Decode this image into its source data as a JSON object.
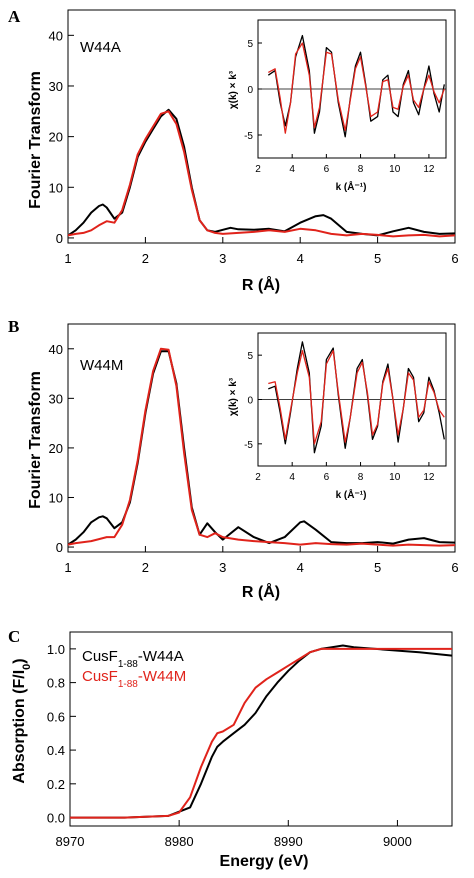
{
  "figure": {
    "panels": [
      {
        "letter": "A",
        "sample": "W44A",
        "xlabel": "R (Å)",
        "ylabel": "Fourier Transform",
        "inset": {
          "xlabel": "k (Å⁻¹)",
          "ylabel": "χ(k) × k³"
        }
      },
      {
        "letter": "B",
        "sample": "W44M",
        "xlabel": "R (Å)",
        "ylabel": "Fourier Transform",
        "inset": {
          "xlabel": "k (Å⁻¹)",
          "ylabel": "χ(k) × k³"
        }
      },
      {
        "letter": "C",
        "xlabel": "Energy (eV)",
        "ylabel": "Absorption (F/I",
        "ylabel_sub": "0",
        "ylabel_close": ")",
        "legend": [
          {
            "prefix": "CusF",
            "sub": "1-88",
            "suffix": "-W44A",
            "color": "#000000"
          },
          {
            "prefix": "CusF",
            "sub": "1-88",
            "suffix": "-W44M",
            "color": "#e0231b"
          }
        ]
      }
    ]
  },
  "chart_data": [
    {
      "type": "line",
      "panel": "A",
      "xlabel": "R (Å)",
      "ylabel": "Fourier Transform",
      "xlim": [
        1,
        6
      ],
      "ylim": [
        -1,
        45
      ],
      "xticks": [
        1,
        2,
        3,
        4,
        5,
        6
      ],
      "yticks": [
        0,
        10,
        20,
        30,
        40
      ],
      "grid": false,
      "series": [
        {
          "color": "#000000",
          "x": [
            1.0,
            1.1,
            1.2,
            1.3,
            1.4,
            1.45,
            1.5,
            1.6,
            1.7,
            1.8,
            1.9,
            2.0,
            2.1,
            2.2,
            2.3,
            2.4,
            2.5,
            2.6,
            2.7,
            2.8,
            2.9,
            3.0,
            3.1,
            3.2,
            3.4,
            3.6,
            3.8,
            4.0,
            4.2,
            4.3,
            4.4,
            4.6,
            4.8,
            5.0,
            5.2,
            5.4,
            5.6,
            5.8,
            6.0
          ],
          "y": [
            0.5,
            1.5,
            3.0,
            5.0,
            6.3,
            6.6,
            6.0,
            3.8,
            5.0,
            10.0,
            16.0,
            19.0,
            21.5,
            24.0,
            25.3,
            23.5,
            18.0,
            10.0,
            3.5,
            1.5,
            1.2,
            1.6,
            2.0,
            1.7,
            1.6,
            1.8,
            1.3,
            3.0,
            4.3,
            4.5,
            3.8,
            1.2,
            0.8,
            0.5,
            1.3,
            2.0,
            1.2,
            0.8,
            0.9
          ]
        },
        {
          "color": "#e0231b",
          "x": [
            1.0,
            1.1,
            1.2,
            1.3,
            1.4,
            1.5,
            1.6,
            1.7,
            1.8,
            1.9,
            2.0,
            2.1,
            2.2,
            2.3,
            2.4,
            2.5,
            2.6,
            2.7,
            2.8,
            2.9,
            3.0,
            3.2,
            3.4,
            3.6,
            3.8,
            4.0,
            4.2,
            4.4,
            4.6,
            4.8,
            5.0,
            5.2,
            5.4,
            5.6,
            5.8,
            6.0
          ],
          "y": [
            0.5,
            0.8,
            1.0,
            1.5,
            2.5,
            3.3,
            3.0,
            5.5,
            10.5,
            16.5,
            19.5,
            22.0,
            24.5,
            25.0,
            22.5,
            17.0,
            9.5,
            3.5,
            1.5,
            1.0,
            0.8,
            1.0,
            1.2,
            1.5,
            1.2,
            1.8,
            1.5,
            0.8,
            0.5,
            0.8,
            0.6,
            0.3,
            0.5,
            0.6,
            0.3,
            0.5
          ]
        }
      ]
    },
    {
      "type": "line",
      "panel": "A-inset",
      "xlabel": "k (Å⁻¹)",
      "ylabel": "χ(k) × k³",
      "xlim": [
        2,
        13
      ],
      "ylim": [
        -7.5,
        7.5
      ],
      "xticks": [
        2,
        4,
        6,
        8,
        10,
        12
      ],
      "yticks": [
        -5,
        0,
        5
      ],
      "series": [
        {
          "color": "#000000",
          "x": [
            2.6,
            3.0,
            3.3,
            3.6,
            3.9,
            4.2,
            4.6,
            5.0,
            5.3,
            5.6,
            6.0,
            6.3,
            6.7,
            7.1,
            7.4,
            7.7,
            8.0,
            8.3,
            8.6,
            9.0,
            9.3,
            9.6,
            9.9,
            10.2,
            10.5,
            10.8,
            11.1,
            11.4,
            11.7,
            12.0,
            12.3,
            12.6,
            12.9
          ],
          "y": [
            1.5,
            2.0,
            -1.5,
            -4.0,
            -1.5,
            3.5,
            5.8,
            2.0,
            -4.8,
            -2.5,
            4.5,
            4.0,
            -1.5,
            -5.2,
            -1.0,
            2.5,
            4.0,
            0.5,
            -3.5,
            -3.0,
            1.0,
            1.5,
            -2.5,
            -3.0,
            0.5,
            2.0,
            -1.5,
            -2.8,
            0.0,
            2.5,
            -0.5,
            -2.5,
            0.5
          ]
        },
        {
          "color": "#e0231b",
          "x": [
            2.6,
            3.0,
            3.3,
            3.6,
            3.9,
            4.2,
            4.6,
            5.0,
            5.3,
            5.6,
            6.0,
            6.3,
            6.7,
            7.1,
            7.4,
            7.7,
            8.0,
            8.3,
            8.6,
            9.0,
            9.3,
            9.6,
            9.9,
            10.2,
            10.5,
            10.8,
            11.1,
            11.4,
            11.7,
            12.0,
            12.3,
            12.6,
            12.9
          ],
          "y": [
            1.8,
            2.2,
            -1.0,
            -4.8,
            -1.5,
            3.8,
            5.0,
            1.5,
            -4.2,
            -2.0,
            4.0,
            3.8,
            -1.2,
            -4.5,
            -1.2,
            2.2,
            3.5,
            0.3,
            -3.0,
            -2.5,
            0.8,
            1.0,
            -2.0,
            -2.2,
            0.3,
            1.5,
            -1.2,
            -2.0,
            0.0,
            1.5,
            -0.3,
            -1.5,
            0.0
          ]
        }
      ]
    },
    {
      "type": "line",
      "panel": "B",
      "xlabel": "R (Å)",
      "ylabel": "Fourier Transform",
      "xlim": [
        1,
        6
      ],
      "ylim": [
        -1,
        45
      ],
      "xticks": [
        1,
        2,
        3,
        4,
        5,
        6
      ],
      "yticks": [
        0,
        10,
        20,
        30,
        40
      ],
      "grid": false,
      "series": [
        {
          "color": "#000000",
          "x": [
            1.0,
            1.1,
            1.2,
            1.3,
            1.4,
            1.45,
            1.5,
            1.6,
            1.7,
            1.8,
            1.9,
            2.0,
            2.1,
            2.2,
            2.3,
            2.4,
            2.5,
            2.6,
            2.7,
            2.8,
            2.9,
            3.0,
            3.2,
            3.4,
            3.6,
            3.8,
            4.0,
            4.05,
            4.2,
            4.4,
            4.6,
            4.8,
            5.0,
            5.2,
            5.4,
            5.6,
            5.8,
            6.0
          ],
          "y": [
            0.5,
            1.5,
            3.0,
            5.0,
            6.0,
            6.2,
            5.8,
            3.8,
            5.0,
            9.0,
            17.0,
            27.0,
            35.0,
            39.5,
            39.5,
            33.0,
            20.0,
            8.0,
            2.5,
            4.8,
            3.0,
            1.5,
            4.0,
            2.0,
            0.8,
            2.0,
            5.0,
            5.2,
            3.5,
            1.0,
            0.8,
            0.8,
            1.0,
            0.7,
            1.5,
            1.8,
            1.0,
            0.9
          ]
        },
        {
          "color": "#e0231b",
          "x": [
            1.0,
            1.1,
            1.2,
            1.3,
            1.4,
            1.5,
            1.6,
            1.7,
            1.8,
            1.9,
            2.0,
            2.1,
            2.2,
            2.3,
            2.4,
            2.5,
            2.6,
            2.7,
            2.8,
            2.9,
            3.0,
            3.2,
            3.4,
            3.6,
            3.8,
            4.0,
            4.2,
            4.4,
            4.6,
            4.8,
            5.0,
            5.2,
            5.4,
            5.6,
            5.8,
            6.0
          ],
          "y": [
            0.5,
            0.8,
            1.0,
            1.2,
            1.6,
            2.0,
            2.0,
            4.5,
            9.5,
            17.5,
            27.5,
            35.5,
            40.0,
            39.8,
            32.5,
            19.0,
            7.5,
            2.5,
            2.0,
            2.8,
            2.0,
            1.5,
            1.2,
            1.0,
            0.8,
            0.5,
            0.8,
            0.6,
            0.5,
            0.7,
            0.5,
            0.3,
            0.5,
            0.4,
            0.3,
            0.4
          ]
        }
      ]
    },
    {
      "type": "line",
      "panel": "B-inset",
      "xlabel": "k (Å⁻¹)",
      "ylabel": "χ(k) × k³",
      "xlim": [
        2,
        13
      ],
      "ylim": [
        -7.5,
        7.5
      ],
      "xticks": [
        2,
        4,
        6,
        8,
        10,
        12
      ],
      "yticks": [
        -5,
        0,
        5
      ],
      "series": [
        {
          "color": "#000000",
          "x": [
            2.6,
            3.0,
            3.3,
            3.6,
            3.9,
            4.3,
            4.6,
            5.0,
            5.3,
            5.7,
            6.0,
            6.4,
            6.7,
            7.1,
            7.4,
            7.8,
            8.1,
            8.4,
            8.7,
            9.0,
            9.3,
            9.6,
            9.9,
            10.2,
            10.5,
            10.8,
            11.1,
            11.4,
            11.7,
            12.0,
            12.3,
            12.6,
            12.9
          ],
          "y": [
            1.2,
            1.5,
            -1.5,
            -5.0,
            -1.5,
            3.5,
            6.5,
            3.0,
            -6.0,
            -3.0,
            4.5,
            5.8,
            0.5,
            -5.5,
            -2.0,
            3.5,
            4.5,
            0.5,
            -4.5,
            -3.0,
            2.0,
            4.0,
            0.0,
            -4.8,
            -1.0,
            3.5,
            2.5,
            -2.5,
            -1.5,
            2.5,
            1.0,
            -1.5,
            -4.5
          ]
        },
        {
          "color": "#e0231b",
          "x": [
            2.6,
            3.0,
            3.3,
            3.6,
            3.9,
            4.3,
            4.6,
            5.0,
            5.3,
            5.7,
            6.0,
            6.4,
            6.7,
            7.1,
            7.4,
            7.8,
            8.1,
            8.4,
            8.7,
            9.0,
            9.3,
            9.6,
            9.9,
            10.2,
            10.5,
            10.8,
            11.1,
            11.4,
            11.7,
            12.0,
            12.3,
            12.6,
            12.9
          ],
          "y": [
            1.8,
            2.0,
            -1.0,
            -4.5,
            -1.2,
            3.0,
            5.5,
            2.5,
            -5.0,
            -2.5,
            4.0,
            5.5,
            0.8,
            -4.8,
            -2.0,
            3.0,
            4.2,
            0.8,
            -4.0,
            -2.8,
            1.8,
            3.5,
            0.0,
            -4.0,
            -1.0,
            3.0,
            2.2,
            -2.0,
            -1.2,
            2.0,
            0.8,
            -1.2,
            -2.0
          ]
        }
      ]
    },
    {
      "type": "line",
      "panel": "C",
      "xlabel": "Energy (eV)",
      "ylabel": "Absorption (F/I0)",
      "xlim": [
        8970,
        9005
      ],
      "ylim": [
        -0.05,
        1.1
      ],
      "xticks": [
        8970,
        8980,
        8990,
        9000
      ],
      "yticks": [
        0.0,
        0.2,
        0.4,
        0.6,
        0.8,
        1.0
      ],
      "grid": false,
      "legend": "top-left",
      "series": [
        {
          "name": "CusF1-88-W44A",
          "color": "#000000",
          "x": [
            8970,
            8975,
            8979,
            8981,
            8982,
            8983,
            8983.5,
            8984,
            8985,
            8986,
            8987,
            8988,
            8989,
            8990,
            8991,
            8992,
            8993,
            8994,
            8995,
            8996,
            8998,
            9000,
            9002,
            9005
          ],
          "y": [
            0.0,
            0.0,
            0.01,
            0.06,
            0.2,
            0.36,
            0.42,
            0.45,
            0.5,
            0.55,
            0.62,
            0.72,
            0.8,
            0.87,
            0.93,
            0.98,
            1.0,
            1.01,
            1.02,
            1.01,
            1.0,
            0.99,
            0.98,
            0.96
          ]
        },
        {
          "name": "CusF1-88-W44M",
          "color": "#e0231b",
          "x": [
            8970,
            8975,
            8979,
            8980,
            8981,
            8982,
            8983,
            8983.5,
            8984,
            8985,
            8986,
            8987,
            8988,
            8989,
            8990,
            8991,
            8992,
            8993,
            8994,
            8995,
            8998,
            9000,
            9002,
            9005
          ],
          "y": [
            0.0,
            0.0,
            0.01,
            0.03,
            0.12,
            0.3,
            0.45,
            0.5,
            0.51,
            0.55,
            0.68,
            0.77,
            0.82,
            0.86,
            0.9,
            0.94,
            0.98,
            1.0,
            1.0,
            1.0,
            1.0,
            1.0,
            1.0,
            1.0
          ]
        }
      ]
    }
  ]
}
